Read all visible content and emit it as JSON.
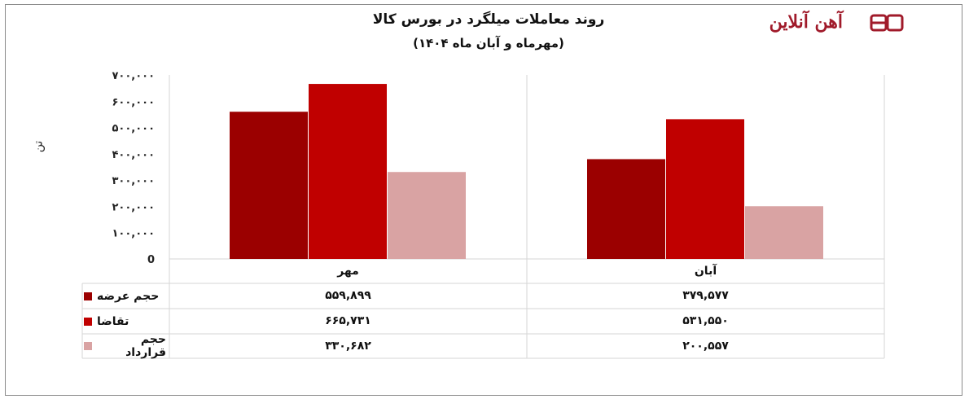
{
  "logo": {
    "text": "آهن آنلاین"
  },
  "chart_data": {
    "type": "bar",
    "title": "روند معاملات میلگرد در بورس کالا",
    "subtitle": "(مهرماه و آبان ماه ۱۴۰۴)",
    "ylabel": "تن",
    "ylim": [
      0,
      700000
    ],
    "yticks": [
      0,
      100000,
      200000,
      300000,
      400000,
      500000,
      600000,
      700000
    ],
    "ytick_labels": [
      "0",
      "۱۰۰,۰۰۰",
      "۲۰۰,۰۰۰",
      "۳۰۰,۰۰۰",
      "۴۰۰,۰۰۰",
      "۵۰۰,۰۰۰",
      "۶۰۰,۰۰۰",
      "۷۰۰,۰۰۰"
    ],
    "categories": [
      "مهر",
      "آبان"
    ],
    "series": [
      {
        "name": "حجم عرضه",
        "color": "#9b0000",
        "values": [
          559899,
          379577
        ],
        "labels": [
          "۵۵۹,۸۹۹",
          "۳۷۹,۵۷۷"
        ]
      },
      {
        "name": "تقاضا",
        "color": "#c00000",
        "values": [
          665731,
          531550
        ],
        "labels": [
          "۶۶۵,۷۳۱",
          "۵۳۱,۵۵۰"
        ]
      },
      {
        "name": "حجم قرارداد",
        "color": "#d9a3a3",
        "values": [
          330682,
          200557
        ],
        "labels": [
          "۳۳۰,۶۸۲",
          "۲۰۰,۵۵۷"
        ]
      }
    ],
    "grid": "vertical",
    "legend": "data-table"
  }
}
